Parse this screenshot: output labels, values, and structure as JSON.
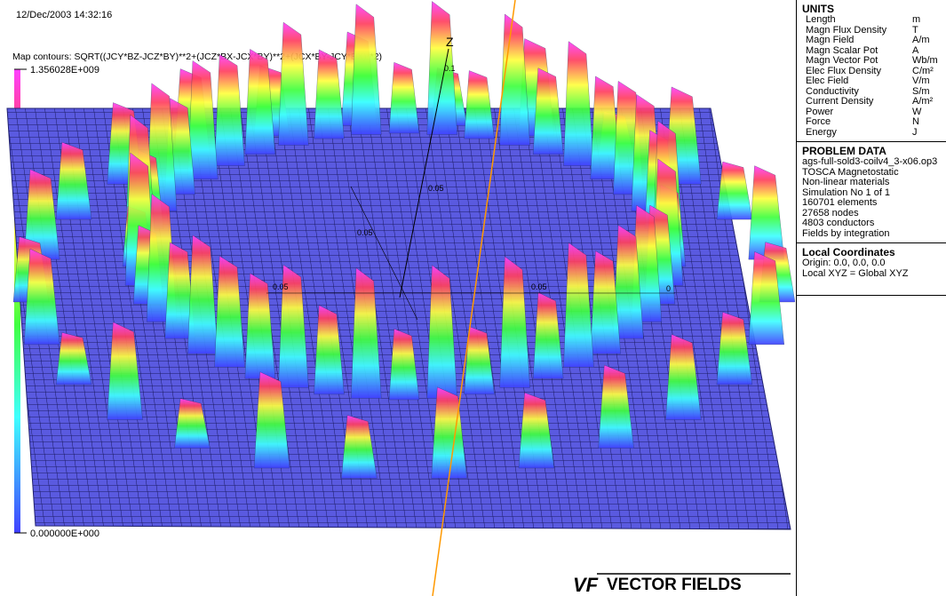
{
  "header": {
    "timestamp": "12/Dec/2003 14:32:16",
    "contour_title": "Map contours: SQRT((JCY*BZ-JCZ*BY)**2+(JCZ*BX-JCX*BY)**2+(JCX*BY-JCY*BX)**2)"
  },
  "colorbar": {
    "max_label": "1.356028E+009",
    "min_label": "0.000000E+000"
  },
  "axes": {
    "z_label": "Z",
    "z_tick_top": "0.1",
    "z_tick_mid": "0.05",
    "x_tick_left": "0.05",
    "x_tick_right": "0.05",
    "y_tick": "0.05",
    "origin": "0"
  },
  "units": {
    "title": "UNITS",
    "rows": [
      [
        "Length",
        "m"
      ],
      [
        "Magn Flux Density",
        "T"
      ],
      [
        "Magn Field",
        "A/m"
      ],
      [
        "Magn Scalar Pot",
        "A"
      ],
      [
        "Magn Vector Pot",
        "Wb/m"
      ],
      [
        "Elec Flux Density",
        "C/m²"
      ],
      [
        "Elec Field",
        "V/m"
      ],
      [
        "Conductivity",
        "S/m"
      ],
      [
        "Current Density",
        "A/m²"
      ],
      [
        "Power",
        "W"
      ],
      [
        "Force",
        "N"
      ],
      [
        "Energy",
        "J"
      ]
    ]
  },
  "problem_data": {
    "title": "PROBLEM DATA",
    "lines": [
      "ags-full-sold3-coilv4_3-x06.op3",
      "TOSCA Magnetostatic",
      "Non-linear materials",
      "Simulation No 1 of 1",
      "160701 elements",
      "27658 nodes",
      "4803 conductors",
      "Fields by integration"
    ]
  },
  "local_coordinates": {
    "title": "Local Coordinates",
    "lines": [
      "Origin: 0.0, 0.0, 0.0",
      "Local XYZ = Global XYZ"
    ]
  },
  "logo": {
    "mark": "VF",
    "text": "VECTOR FIELDS"
  }
}
